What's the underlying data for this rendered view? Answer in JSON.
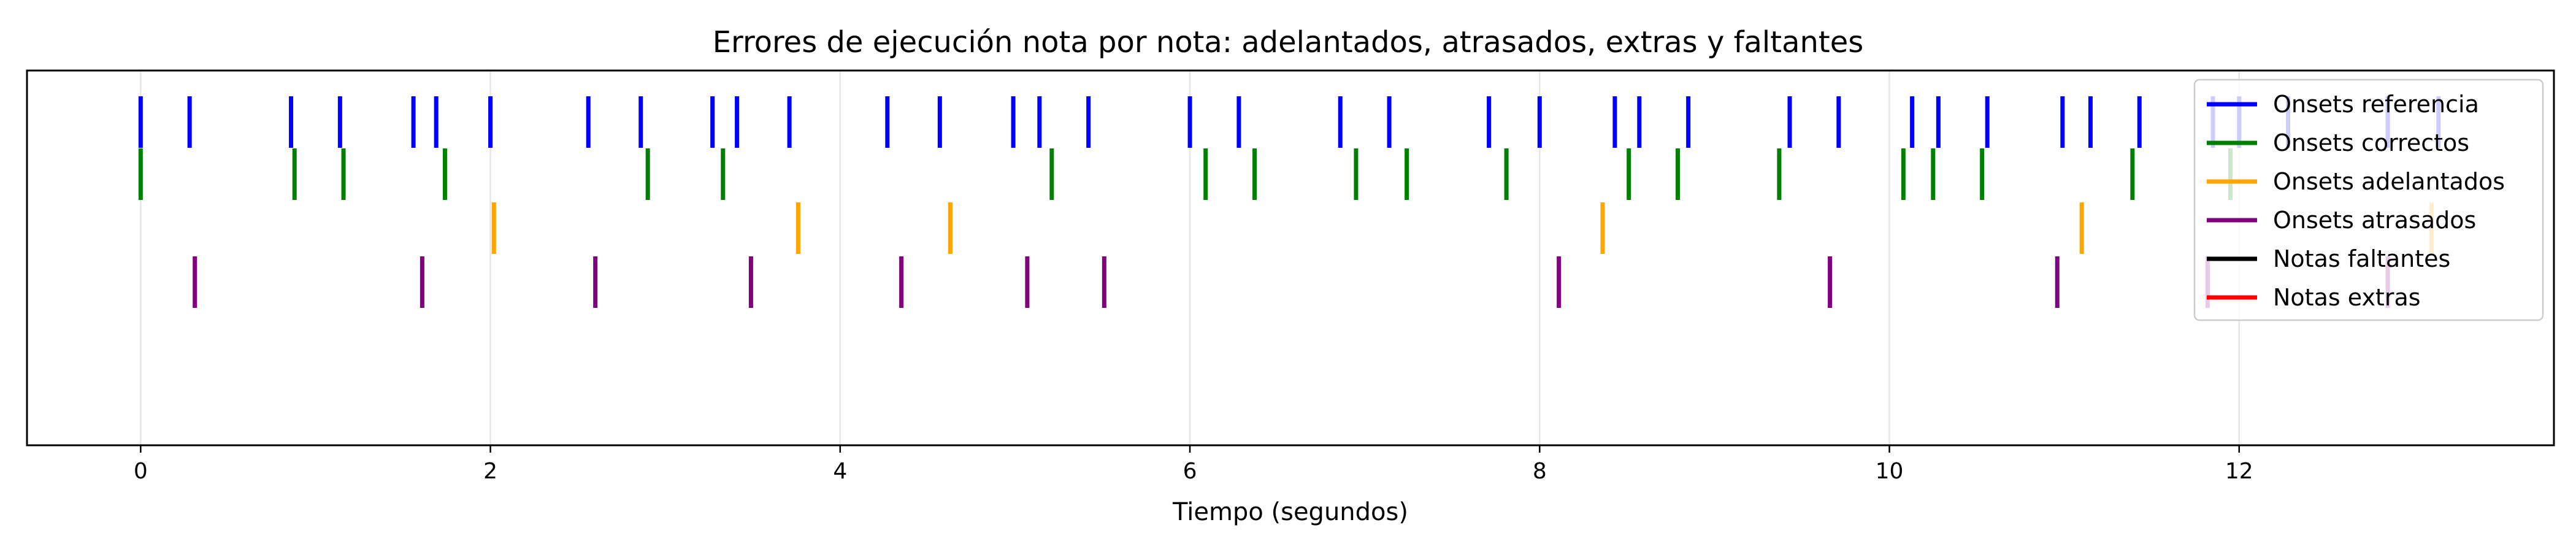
{
  "chart_data": {
    "type": "event",
    "title": "Errores de ejecución nota por nota: adelantados, atrasados, extras y faltantes",
    "xlabel": "Tiempo (segundos)",
    "ylabel": "",
    "xlim": [
      -0.65,
      13.8
    ],
    "xticks": [
      "0",
      "2",
      "4",
      "6",
      "8",
      "10",
      "12"
    ],
    "grid": "x",
    "legend_position": "upper right",
    "series": [
      {
        "name": "Onsets referencia",
        "color": "#0000ff",
        "row": 0,
        "x": [
          0.0,
          0.28,
          0.86,
          1.14,
          1.56,
          1.69,
          2.0,
          2.56,
          2.86,
          3.27,
          3.41,
          3.71,
          4.27,
          4.57,
          4.99,
          5.14,
          5.42,
          6.0,
          6.28,
          6.86,
          7.14,
          7.71,
          8.0,
          8.43,
          8.57,
          8.85,
          9.43,
          9.71,
          10.13,
          10.28,
          10.56,
          10.99,
          11.15,
          11.43,
          11.85,
          12.0,
          12.28,
          12.85,
          13.14
        ]
      },
      {
        "name": "Onsets correctos",
        "color": "#008000",
        "row": 1,
        "x": [
          0.0,
          0.88,
          1.16,
          1.74,
          2.9,
          3.33,
          5.21,
          6.09,
          6.37,
          6.95,
          7.24,
          7.81,
          8.51,
          8.79,
          9.37,
          10.08,
          10.25,
          10.53,
          11.39,
          11.95
        ]
      },
      {
        "name": "Onsets adelantados",
        "color": "#ffa500",
        "row": 2,
        "x": [
          2.02,
          3.76,
          4.63,
          8.36,
          11.1,
          13.1
        ]
      },
      {
        "name": "Onsets atrasados",
        "color": "#800080",
        "row": 3,
        "x": [
          0.31,
          1.61,
          2.6,
          3.49,
          4.35,
          5.07,
          5.51,
          8.11,
          9.66,
          10.96,
          11.82,
          12.85
        ]
      },
      {
        "name": "Notas faltantes",
        "color": "#000000",
        "row": 4,
        "x": []
      },
      {
        "name": "Notas extras",
        "color": "#ff0000",
        "row": 5,
        "x": []
      }
    ]
  }
}
